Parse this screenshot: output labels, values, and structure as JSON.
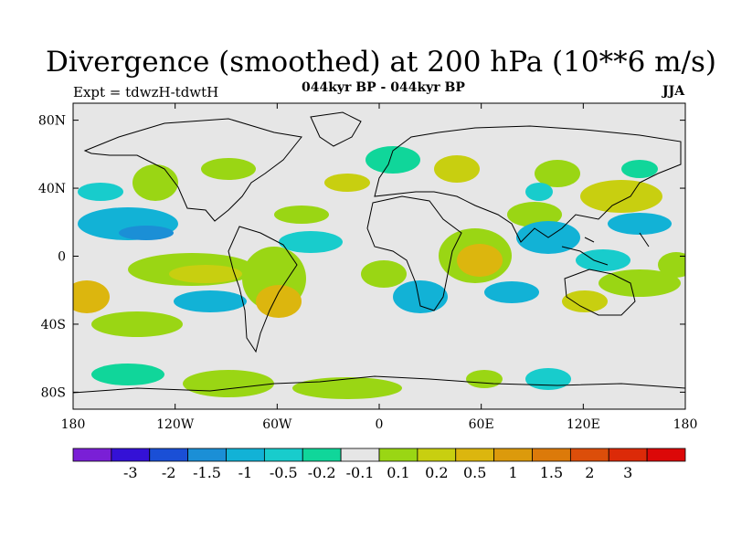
{
  "title": "Divergence (smoothed) at 200 hPa (10**6 m/s)",
  "experiment": "Expt = tdwzH-tdwtH",
  "subtitle": "044kyr BP - 044kyr BP",
  "season": "JJA",
  "map": {
    "projection": "cylindrical-equidistant",
    "lon_range": [
      -180,
      180
    ],
    "lat_range": [
      -90,
      90
    ],
    "background_color": "#e6e6e6",
    "lon_ticks": [
      {
        "value": -180,
        "label": "180"
      },
      {
        "value": -120,
        "label": "120W"
      },
      {
        "value": -60,
        "label": "60W"
      },
      {
        "value": 0,
        "label": "0"
      },
      {
        "value": 60,
        "label": "60E"
      },
      {
        "value": 120,
        "label": "120E"
      },
      {
        "value": 180,
        "label": "180"
      }
    ],
    "lat_ticks": [
      {
        "value": 80,
        "label": "80N"
      },
      {
        "value": 40,
        "label": "40N"
      },
      {
        "value": 0,
        "label": "0"
      },
      {
        "value": -40,
        "label": "40S"
      },
      {
        "value": -80,
        "label": "80S"
      }
    ]
  },
  "colorbar": {
    "colors": [
      "#7a1fd6",
      "#3411d6",
      "#1a4fd6",
      "#1b8fd6",
      "#12b2d6",
      "#18cccc",
      "#10d69a",
      "#e6e6e6",
      "#9ad614",
      "#c8cf10",
      "#dcb60e",
      "#dc9a0c",
      "#dc7a0a",
      "#dc4e0a",
      "#dc2a08",
      "#dc0808"
    ],
    "labels": [
      "-3",
      "-2",
      "-1.5",
      "-1",
      "-0.5",
      "-0.2",
      "-0.1",
      "0.1",
      "0.2",
      "0.5",
      "1",
      "1.5",
      "2",
      "3"
    ]
  }
}
